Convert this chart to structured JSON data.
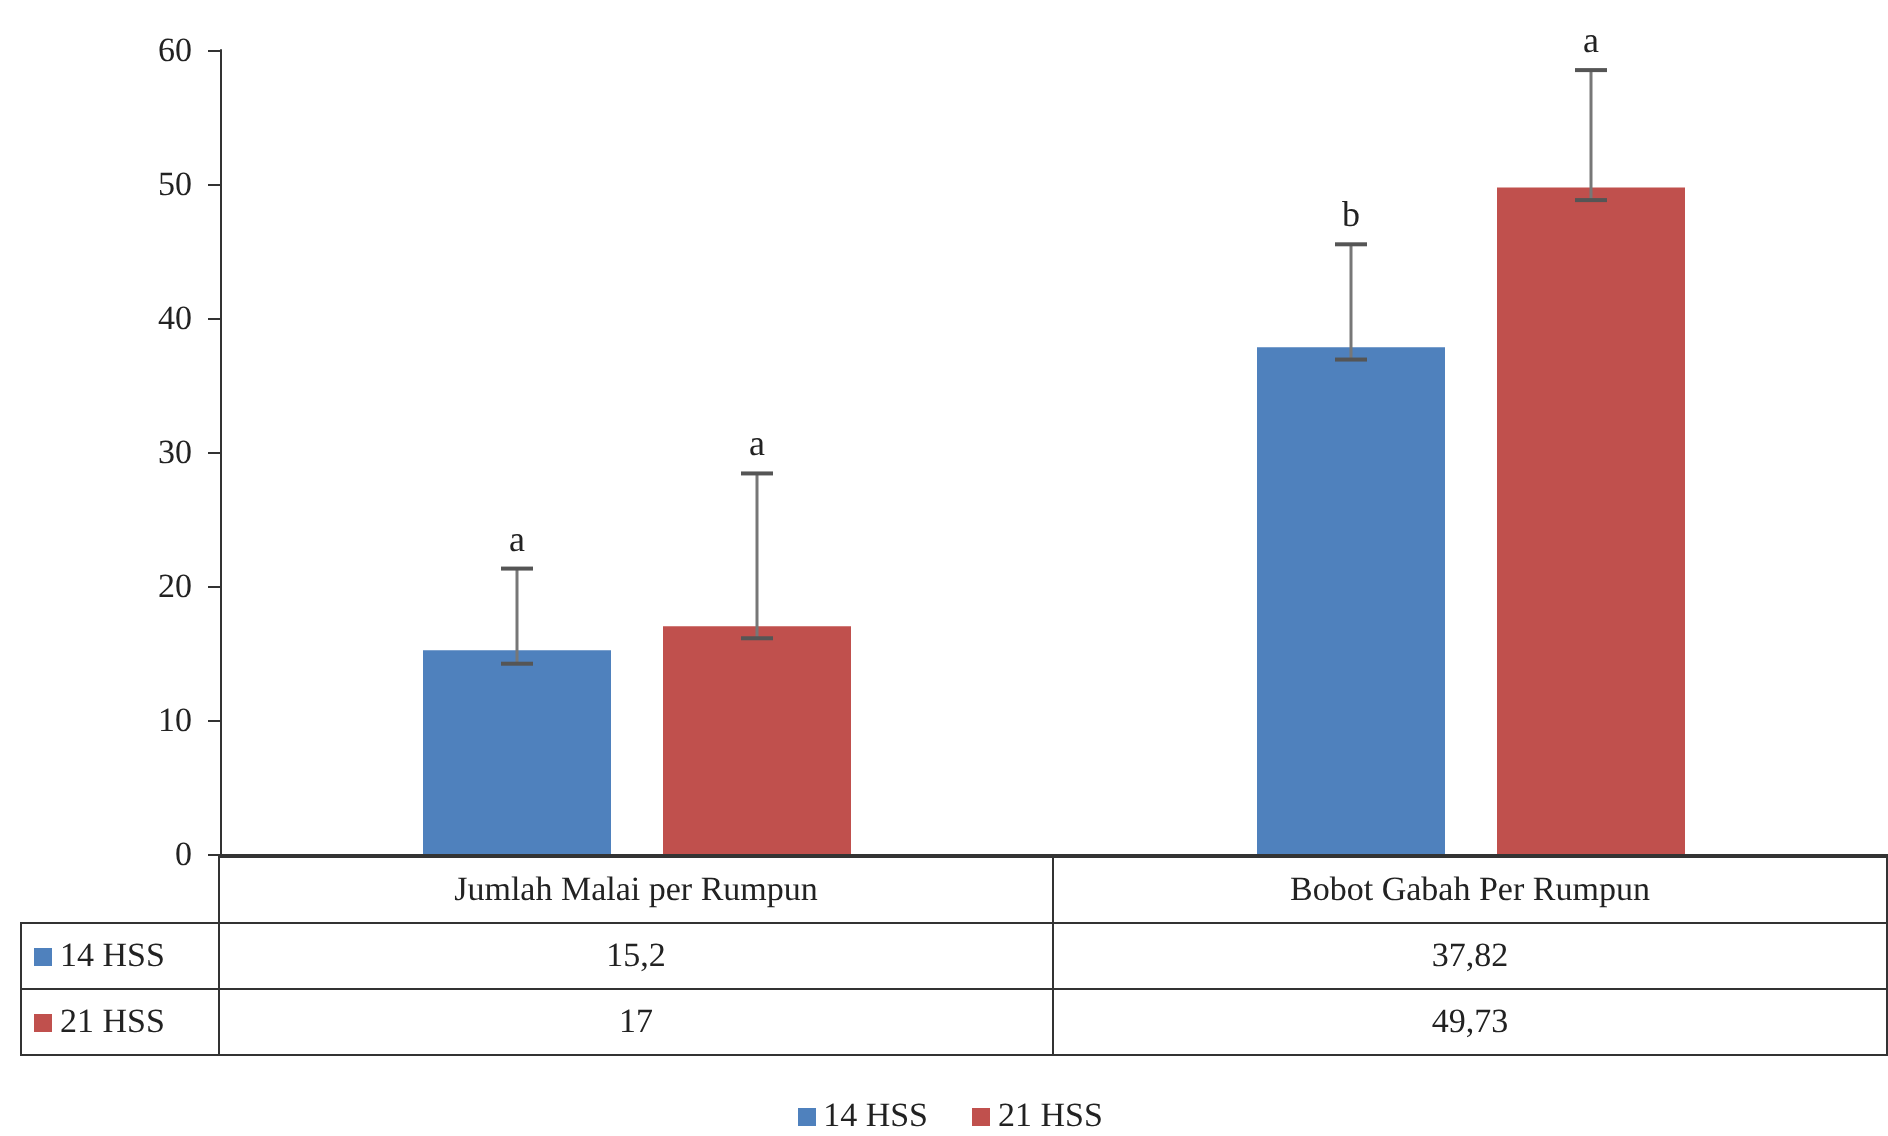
{
  "chart_data": {
    "type": "bar",
    "categories": [
      "Jumlah Malai per Rumpun",
      "Bobot Gabah Per Rumpun"
    ],
    "series": [
      {
        "name": "14 HSS",
        "color": "#4f81bd",
        "values": [
          15.2,
          37.82
        ],
        "value_labels": [
          "15,2",
          "37,82"
        ],
        "errors": [
          [
            14.2,
            21.3
          ],
          [
            36.9,
            45.5
          ]
        ]
      },
      {
        "name": "21 HSS",
        "color": "#c0504d",
        "values": [
          17,
          49.73
        ],
        "value_labels": [
          "17",
          "49,73"
        ],
        "errors": [
          [
            16.1,
            28.4
          ],
          [
            48.8,
            58.5
          ]
        ]
      }
    ],
    "ylim": [
      0,
      60
    ],
    "yticks": [
      0,
      10,
      20,
      30,
      40,
      50,
      60
    ],
    "grid": false,
    "legend": "bottom",
    "annotations": [
      "a",
      "a",
      "b",
      "a"
    ]
  }
}
